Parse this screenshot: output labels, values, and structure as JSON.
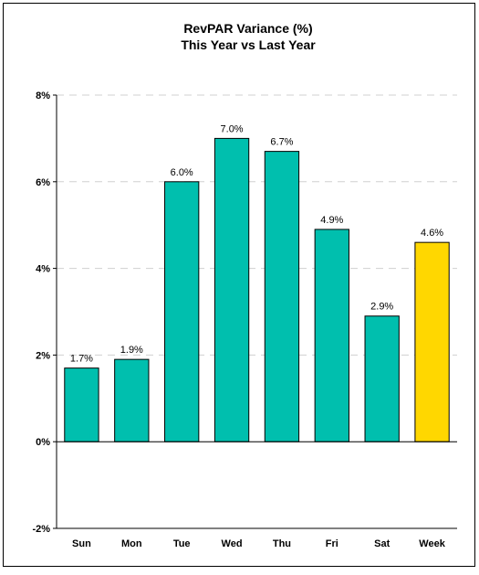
{
  "chart_data": {
    "type": "bar",
    "title": "RevPAR Variance (%)",
    "subtitle": "This Year vs Last Year",
    "xlabel": "",
    "ylabel": "",
    "categories": [
      "Sun",
      "Mon",
      "Tue",
      "Wed",
      "Thu",
      "Fri",
      "Sat",
      "Week"
    ],
    "values": [
      1.7,
      1.9,
      6.0,
      7.0,
      6.7,
      4.9,
      2.9,
      4.6
    ],
    "data_labels": [
      "1.7%",
      "1.9%",
      "6.0%",
      "7.0%",
      "6.7%",
      "4.9%",
      "2.9%",
      "4.6%"
    ],
    "ylim": [
      -2,
      8
    ],
    "yticks": [
      -2,
      0,
      2,
      4,
      6,
      8
    ],
    "ytick_labels": [
      "-2%",
      "0%",
      "2%",
      "4%",
      "6%",
      "8%"
    ],
    "grid": true,
    "legend": "none",
    "colors": {
      "bar": "#00BFAE",
      "highlight_bar": "#FFD700",
      "bar_stroke": "#000000",
      "gridline": "#d0d0d0",
      "axis": "#000000"
    },
    "highlight_category": "Week"
  }
}
